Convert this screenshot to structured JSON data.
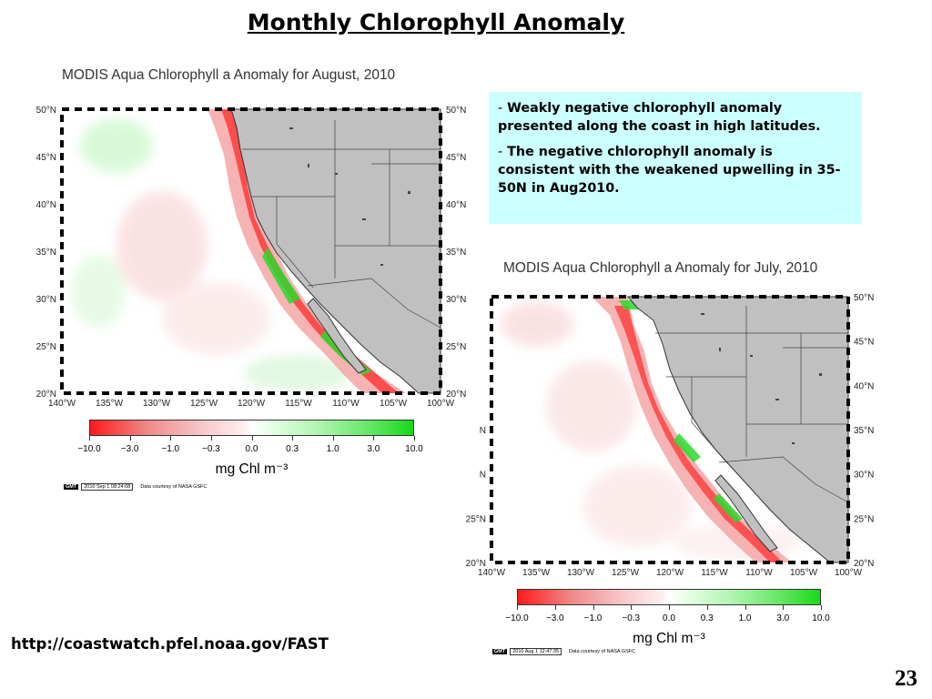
{
  "slide": {
    "title": "Monthly Chlorophyll Anomaly",
    "url": "http://coastwatch.pfel.noaa.gov/FAST",
    "page_number": "23"
  },
  "info": {
    "bullet_marker": "-",
    "bullets": [
      "Weakly negative chlorophyll anomaly presented along the coast in high latitudes.",
      "The negative chlorophyll anomaly is consistent with the weakened upwelling in 35-50N in Aug2010."
    ]
  },
  "maps": {
    "august": {
      "caption": "MODIS Aqua Chlorophyll a Anomaly for August, 2010",
      "lat_labels_left": [
        "50°N",
        "45°N",
        "40°N",
        "35°N",
        "30°N",
        "25°N",
        "20°N"
      ],
      "lat_labels_right": [
        "50°N",
        "45°N",
        "40°N",
        "35°N",
        "30°N",
        "25°N",
        "20°N"
      ],
      "lon_labels": [
        "140°W",
        "135°W",
        "130°W",
        "125°W",
        "120°W",
        "115°W",
        "110°W",
        "105°W",
        "100°W"
      ],
      "colorbar": {
        "ticks": [
          "−10.0",
          "−3.0",
          "−1.0",
          "−0.3",
          "0.0",
          "0.3",
          "1.0",
          "3.0",
          "10.0"
        ],
        "unit": "mg Chl m⁻³"
      },
      "credit": {
        "badge": "GMT",
        "timestamp": "2010 Sep  1 08:24:08",
        "source": "Data courtesy of NASA GSFC"
      }
    },
    "july": {
      "caption": "MODIS Aqua Chlorophyll a Anomaly for July, 2010",
      "lat_labels_left": [
        "",
        "",
        "",
        "N",
        "N",
        "25°N",
        "20°N"
      ],
      "lat_labels_right": [
        "50°N",
        "45°N",
        "40°N",
        "35°N",
        "30°N",
        "25°N",
        "20°N"
      ],
      "lon_labels": [
        "140°W",
        "135°W",
        "130°W",
        "125°W",
        "120°W",
        "115°W",
        "110°W",
        "105°W",
        "100°W"
      ],
      "colorbar": {
        "ticks": [
          "−10.0",
          "−3.0",
          "−1.0",
          "−0.3",
          "0.0",
          "0.3",
          "1.0",
          "3.0",
          "10.0"
        ],
        "unit": "mg Chl m⁻³"
      },
      "credit": {
        "badge": "GMT",
        "timestamp": "2010 Aug  1 12:47:35",
        "source": "Data courtesy of NASA GSFC"
      }
    }
  },
  "colors": {
    "land": "#c0c0c0",
    "ocean": "#ffffff",
    "negative": "#ff1a1a",
    "positive": "#19d919",
    "info_bg": "#ccffff"
  }
}
